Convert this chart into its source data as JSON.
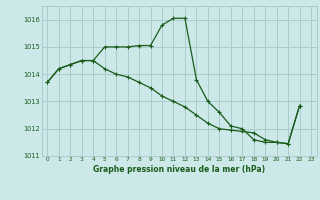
{
  "title": "Graphe pression niveau de la mer (hPa)",
  "background_color": "#cce8e8",
  "grid_color": "#aacccc",
  "line_color": "#1a5c1a",
  "line1_x": [
    0,
    1,
    2,
    3,
    4,
    5,
    6,
    7,
    8,
    9,
    10,
    11,
    12,
    13,
    14,
    15,
    16,
    17,
    18,
    19,
    20,
    21,
    22
  ],
  "line1_y": [
    1013.7,
    1014.2,
    1014.35,
    1014.5,
    1014.5,
    1015.0,
    1015.0,
    1015.0,
    1015.05,
    1015.05,
    1015.8,
    1016.05,
    1016.05,
    1013.8,
    1013.0,
    1012.6,
    1012.1,
    1012.0,
    1011.6,
    1011.5,
    1011.5,
    1011.45,
    1012.85
  ],
  "line2_x": [
    0,
    1,
    2,
    3,
    4,
    5,
    6,
    7,
    8,
    9,
    10,
    11,
    12,
    13,
    14,
    15,
    16,
    17,
    18,
    19,
    20,
    21,
    22
  ],
  "line2_y": [
    1013.7,
    1014.2,
    1014.35,
    1014.5,
    1014.5,
    1014.2,
    1014.0,
    1013.9,
    1013.7,
    1013.5,
    1013.2,
    1013.0,
    1012.8,
    1012.5,
    1012.2,
    1012.0,
    1011.95,
    1011.9,
    1011.85,
    1011.6,
    1011.5,
    1011.45,
    1012.85
  ],
  "ylim": [
    1011.0,
    1016.5
  ],
  "xlim": [
    -0.5,
    23.5
  ],
  "yticks": [
    1011,
    1012,
    1013,
    1014,
    1015,
    1016
  ],
  "xticks": [
    0,
    1,
    2,
    3,
    4,
    5,
    6,
    7,
    8,
    9,
    10,
    11,
    12,
    13,
    14,
    15,
    16,
    17,
    18,
    19,
    20,
    21,
    22,
    23
  ]
}
